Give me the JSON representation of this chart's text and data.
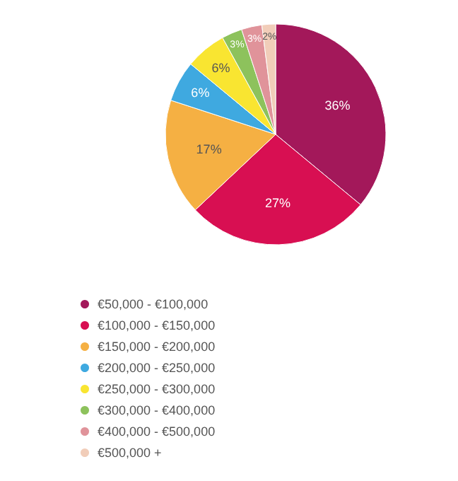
{
  "chart_data": {
    "type": "pie",
    "categories": [
      "€50,000 - €100,000",
      "€100,000 - €150,000",
      "€150,000 - €200,000",
      "€200,000 - €250,000",
      "€250,000 - €300,000",
      "€300,000 - €400,000",
      "€400,000 - €500,000",
      "€500,000 +"
    ],
    "values": [
      36,
      27,
      17,
      6,
      6,
      3,
      3,
      2
    ],
    "colors": [
      "#a3185a",
      "#d80f52",
      "#f5b043",
      "#3fa9e0",
      "#f9e531",
      "#8dc25c",
      "#e0939a",
      "#f1cdb9"
    ],
    "value_labels": [
      "36%",
      "27%",
      "17%",
      "6%",
      "6%",
      "3%",
      "3%",
      "2%"
    ],
    "legend": "bottom left"
  }
}
